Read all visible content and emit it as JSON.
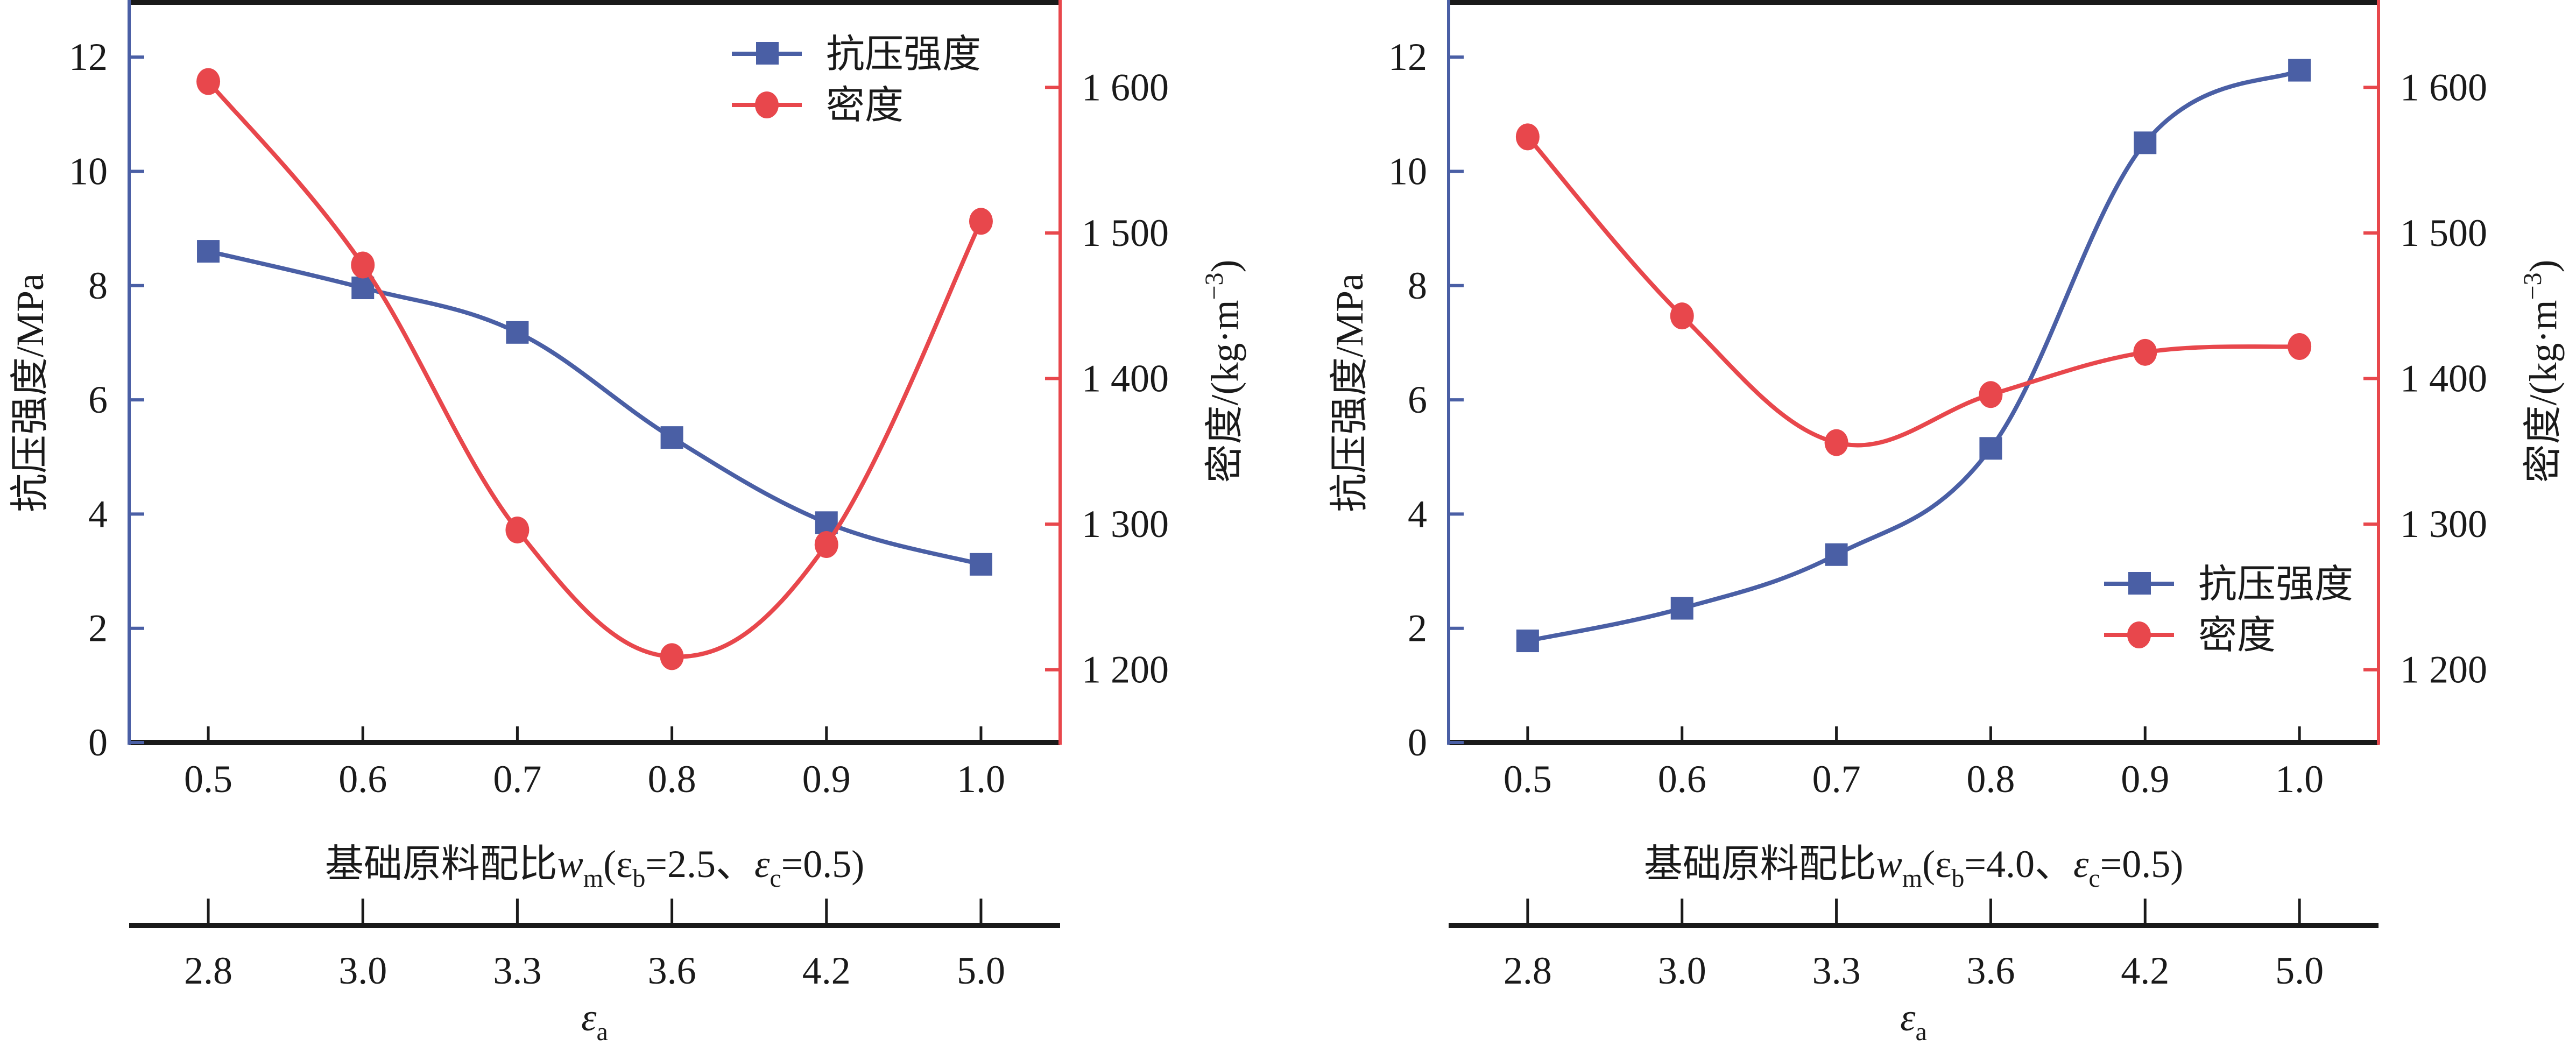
{
  "colors": {
    "strength": "#4A5FA5",
    "density": "#E8474C",
    "axis": "#1a1a1a"
  },
  "chart_data": [
    {
      "type": "line",
      "categories": [
        "0.5",
        "0.6",
        "0.7",
        "0.8",
        "0.9",
        "1.0"
      ],
      "secondary_categories": [
        "2.8",
        "3.0",
        "3.3",
        "3.6",
        "4.2",
        "5.0"
      ],
      "xlabel": {
        "main": "基础原料配比",
        "var": "w",
        "sub": "m",
        "params": "(ε",
        "p1sub": "b",
        "p1val": "=2.5、",
        "p2": "ε",
        "p2sub": "c",
        "p2val": "=0.5)"
      },
      "secondary_xlabel": {
        "var": "ε",
        "sub": "a"
      },
      "ylabel": "抗压强度/MPa",
      "ylabel_right": {
        "text": "密度/(kg·m",
        "sup": "−3",
        "close": ")"
      },
      "ylim": [
        0,
        13
      ],
      "yticks": [
        "0",
        "2",
        "4",
        "6",
        "8",
        "10",
        "12"
      ],
      "ylim_right": [
        1150,
        1660
      ],
      "yticks_right": [
        "1 200",
        "1 300",
        "1 400",
        "1 500",
        "1 600"
      ],
      "legend_position": "top-right",
      "series": [
        {
          "name": "抗压强度",
          "axis": "left",
          "marker": "square",
          "values": [
            8.6,
            7.96,
            7.18,
            5.34,
            3.85,
            3.12
          ]
        },
        {
          "name": "密度",
          "axis": "right",
          "marker": "circle",
          "values": [
            1604,
            1478,
            1296,
            1209,
            1286,
            1508
          ]
        }
      ]
    },
    {
      "type": "line",
      "categories": [
        "0.5",
        "0.6",
        "0.7",
        "0.8",
        "0.9",
        "1.0"
      ],
      "secondary_categories": [
        "2.8",
        "3.0",
        "3.3",
        "3.6",
        "4.2",
        "5.0"
      ],
      "xlabel": {
        "main": "基础原料配比",
        "var": "w",
        "sub": "m",
        "params": "(ε",
        "p1sub": "b",
        "p1val": "=4.0、",
        "p2": "ε",
        "p2sub": "c",
        "p2val": "=0.5)"
      },
      "secondary_xlabel": {
        "var": "ε",
        "sub": "a"
      },
      "ylabel": "抗压强度/MPa",
      "ylabel_right": {
        "text": "密度/(kg·m",
        "sup": "−3",
        "close": ")"
      },
      "ylim": [
        0,
        13
      ],
      "yticks": [
        "0",
        "2",
        "4",
        "6",
        "8",
        "10",
        "12"
      ],
      "ylim_right": [
        1150,
        1660
      ],
      "yticks_right": [
        "1 200",
        "1 300",
        "1 400",
        "1 500",
        "1 600"
      ],
      "legend_position": "bottom-right",
      "series": [
        {
          "name": "抗压强度",
          "axis": "left",
          "marker": "square",
          "values": [
            1.78,
            2.35,
            3.29,
            5.15,
            10.5,
            11.77
          ]
        },
        {
          "name": "密度",
          "axis": "right",
          "marker": "circle",
          "values": [
            1566,
            1443,
            1356,
            1389,
            1418,
            1422
          ]
        }
      ]
    }
  ]
}
